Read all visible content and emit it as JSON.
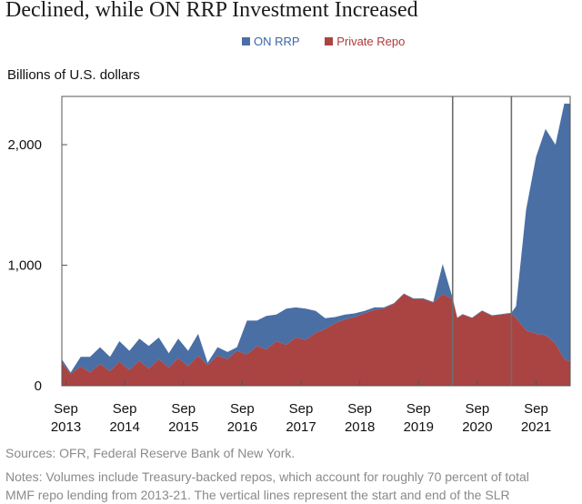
{
  "title": "Declined, while ON RRP Investment Increased",
  "legend": {
    "on_rrp": "ON RRP",
    "private_repo": "Private Repo"
  },
  "ylabel": "Billions of U.S. dollars",
  "source": "Sources: OFR, Federal Reserve Bank of New York.",
  "notes": [
    "Notes: Volumes include Treasury-backed repos, which account for roughly 70 percent of total",
    "MMF repo lending from 2013-21. The vertical lines represent the start and end of the SLR"
  ],
  "colors": {
    "on_rrp": "#4a6fa5",
    "private_repo": "#a94442"
  },
  "chart_data": {
    "type": "area",
    "stacked": true,
    "title": "Declined, while ON RRP Investment Increased",
    "ylabel": "Billions of U.S. dollars",
    "ylim": [
      0,
      2400
    ],
    "yticks": [
      0,
      1000,
      2000
    ],
    "ytick_labels": [
      "0",
      "1,000",
      "2,000"
    ],
    "xlim": [
      2013.6,
      2022.25
    ],
    "xticks": [
      {
        "x": 2013.67,
        "line1": "Sep",
        "line2": "2013"
      },
      {
        "x": 2014.67,
        "line1": "Sep",
        "line2": "2014"
      },
      {
        "x": 2015.67,
        "line1": "Sep",
        "line2": "2015"
      },
      {
        "x": 2016.67,
        "line1": "Sep",
        "line2": "2016"
      },
      {
        "x": 2017.67,
        "line1": "Sep",
        "line2": "2017"
      },
      {
        "x": 2018.67,
        "line1": "Sep",
        "line2": "2018"
      },
      {
        "x": 2019.67,
        "line1": "Sep",
        "line2": "2019"
      },
      {
        "x": 2020.67,
        "line1": "Sep",
        "line2": "2020"
      },
      {
        "x": 2021.67,
        "line1": "Sep",
        "line2": "2021"
      }
    ],
    "vertical_lines": [
      2020.25,
      2021.25
    ],
    "grid": false,
    "legend_position": "top",
    "series": [
      {
        "name": "Private Repo",
        "points": [
          [
            2013.6,
            190
          ],
          [
            2013.75,
            100
          ],
          [
            2013.92,
            160
          ],
          [
            2014.08,
            110
          ],
          [
            2014.25,
            180
          ],
          [
            2014.42,
            120
          ],
          [
            2014.58,
            200
          ],
          [
            2014.75,
            130
          ],
          [
            2014.92,
            210
          ],
          [
            2015.08,
            140
          ],
          [
            2015.25,
            220
          ],
          [
            2015.42,
            150
          ],
          [
            2015.58,
            230
          ],
          [
            2015.75,
            160
          ],
          [
            2015.92,
            250
          ],
          [
            2016.08,
            170
          ],
          [
            2016.25,
            250
          ],
          [
            2016.42,
            220
          ],
          [
            2016.58,
            290
          ],
          [
            2016.75,
            260
          ],
          [
            2016.92,
            330
          ],
          [
            2017.08,
            300
          ],
          [
            2017.25,
            370
          ],
          [
            2017.42,
            340
          ],
          [
            2017.58,
            400
          ],
          [
            2017.75,
            380
          ],
          [
            2017.92,
            440
          ],
          [
            2018.08,
            470
          ],
          [
            2018.25,
            520
          ],
          [
            2018.42,
            550
          ],
          [
            2018.58,
            570
          ],
          [
            2018.75,
            600
          ],
          [
            2018.92,
            630
          ],
          [
            2019.08,
            640
          ],
          [
            2019.25,
            680
          ],
          [
            2019.42,
            760
          ],
          [
            2019.58,
            720
          ],
          [
            2019.75,
            720
          ],
          [
            2019.92,
            690
          ],
          [
            2020.08,
            760
          ],
          [
            2020.25,
            720
          ],
          [
            2020.33,
            560
          ],
          [
            2020.42,
            590
          ],
          [
            2020.58,
            560
          ],
          [
            2020.75,
            620
          ],
          [
            2020.92,
            580
          ],
          [
            2021.08,
            590
          ],
          [
            2021.25,
            600
          ],
          [
            2021.33,
            560
          ],
          [
            2021.5,
            460
          ],
          [
            2021.67,
            430
          ],
          [
            2021.83,
            420
          ],
          [
            2022.0,
            350
          ],
          [
            2022.15,
            220
          ],
          [
            2022.25,
            200
          ]
        ]
      },
      {
        "name": "ON RRP",
        "points": [
          [
            2013.6,
            30
          ],
          [
            2013.75,
            10
          ],
          [
            2013.92,
            80
          ],
          [
            2014.08,
            130
          ],
          [
            2014.25,
            140
          ],
          [
            2014.42,
            120
          ],
          [
            2014.58,
            170
          ],
          [
            2014.75,
            160
          ],
          [
            2014.92,
            180
          ],
          [
            2015.08,
            190
          ],
          [
            2015.25,
            180
          ],
          [
            2015.42,
            120
          ],
          [
            2015.58,
            160
          ],
          [
            2015.75,
            130
          ],
          [
            2015.92,
            180
          ],
          [
            2016.08,
            20
          ],
          [
            2016.25,
            70
          ],
          [
            2016.42,
            60
          ],
          [
            2016.58,
            30
          ],
          [
            2016.75,
            280
          ],
          [
            2016.92,
            210
          ],
          [
            2017.08,
            280
          ],
          [
            2017.25,
            220
          ],
          [
            2017.42,
            300
          ],
          [
            2017.58,
            250
          ],
          [
            2017.75,
            260
          ],
          [
            2017.92,
            180
          ],
          [
            2018.08,
            90
          ],
          [
            2018.25,
            50
          ],
          [
            2018.42,
            40
          ],
          [
            2018.58,
            30
          ],
          [
            2018.75,
            20
          ],
          [
            2018.92,
            20
          ],
          [
            2019.08,
            10
          ],
          [
            2019.25,
            5
          ],
          [
            2019.42,
            5
          ],
          [
            2019.58,
            5
          ],
          [
            2019.75,
            5
          ],
          [
            2019.92,
            5
          ],
          [
            2020.08,
            250
          ],
          [
            2020.25,
            5
          ],
          [
            2020.33,
            5
          ],
          [
            2020.42,
            5
          ],
          [
            2020.58,
            5
          ],
          [
            2020.75,
            5
          ],
          [
            2020.92,
            5
          ],
          [
            2021.08,
            5
          ],
          [
            2021.25,
            5
          ],
          [
            2021.33,
            100
          ],
          [
            2021.5,
            1000
          ],
          [
            2021.67,
            1470
          ],
          [
            2021.83,
            1710
          ],
          [
            2022.0,
            1650
          ],
          [
            2022.15,
            2120
          ],
          [
            2022.25,
            2140
          ]
        ]
      }
    ]
  }
}
